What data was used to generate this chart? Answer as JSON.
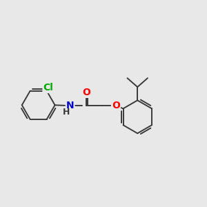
{
  "background_color": "#e8e8e8",
  "bond_color": "#3a3a3a",
  "bond_width": 1.4,
  "atom_colors": {
    "Cl": "#00aa00",
    "O": "#ff0000",
    "N": "#0000cc",
    "H": "#3a3a3a"
  },
  "font_size": 10,
  "fig_size": [
    3.0,
    3.0
  ],
  "dpi": 100,
  "xlim": [
    -3.0,
    3.4
  ],
  "ylim": [
    -1.8,
    1.8
  ]
}
